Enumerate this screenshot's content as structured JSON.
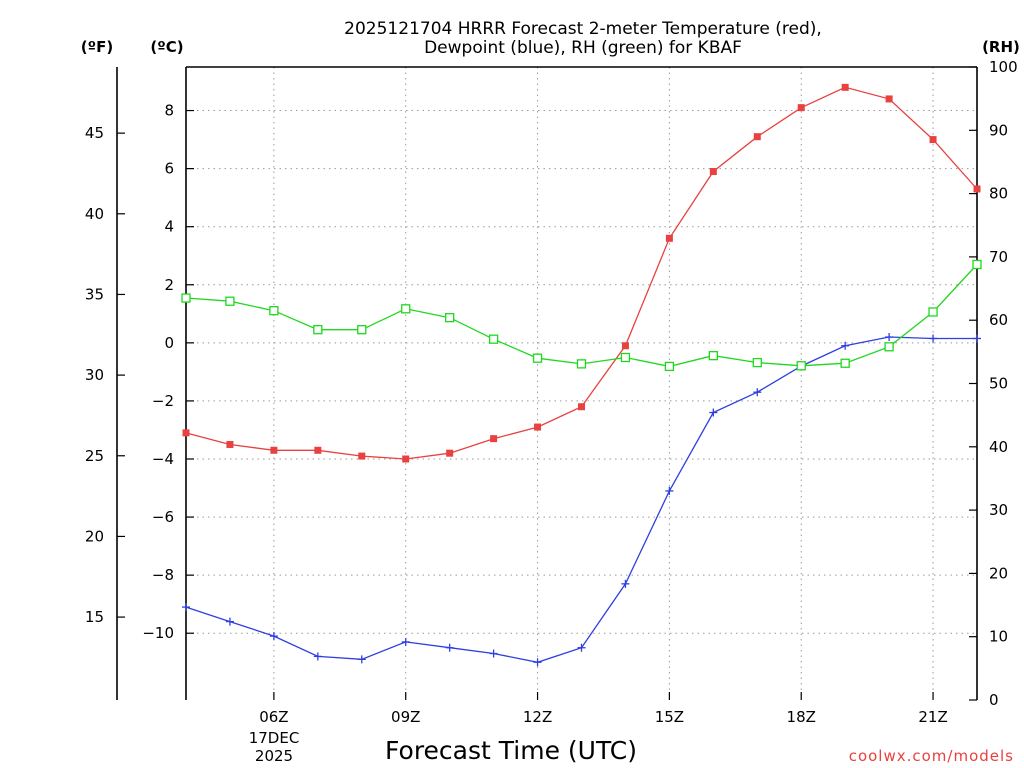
{
  "chart_data": {
    "type": "line",
    "title_line1": "2025121704 HRRR Forecast 2-meter Temperature (red),",
    "title_line2": "Dewpoint (blue), RH (green) for KBAF",
    "xlabel": "Forecast Time (UTC)",
    "credit": "coolwx.com/models",
    "date_label_day": "17DEC",
    "date_label_year": "2025",
    "left_outer_unit": "(ºF)",
    "left_unit": "(ºC)",
    "right_unit": "(RH)",
    "x_hours": [
      4,
      5,
      6,
      7,
      8,
      9,
      10,
      11,
      12,
      13,
      14,
      15,
      16,
      17,
      18,
      19,
      20,
      21,
      22
    ],
    "xlim": [
      4,
      22
    ],
    "x_ticks": [
      {
        "hour": 6,
        "label": "06Z"
      },
      {
        "hour": 9,
        "label": "09Z"
      },
      {
        "hour": 12,
        "label": "12Z"
      },
      {
        "hour": 15,
        "label": "15Z"
      },
      {
        "hour": 18,
        "label": "18Z"
      },
      {
        "hour": 21,
        "label": "21Z"
      }
    ],
    "celsius_axis": {
      "ylim": [
        -12.3,
        9.5
      ],
      "ticks": [
        8,
        6,
        4,
        2,
        0,
        -2,
        -4,
        -6,
        -8,
        -10
      ]
    },
    "fahrenheit_axis": {
      "ticks": [
        45,
        40,
        35,
        30,
        25,
        20,
        15
      ]
    },
    "rh_axis": {
      "ylim": [
        0,
        100
      ],
      "ticks": [
        100,
        90,
        80,
        70,
        60,
        50,
        40,
        30,
        20,
        10,
        0
      ]
    },
    "series": [
      {
        "name": "2-meter Temperature",
        "units": "C",
        "axis": "celsius",
        "color": "#e8413f",
        "marker": "filled-square",
        "values": [
          -3.1,
          -3.5,
          -3.7,
          -3.7,
          -3.9,
          -4.0,
          -3.8,
          -3.3,
          -2.9,
          -2.2,
          -0.1,
          3.6,
          5.9,
          7.1,
          8.1,
          8.8,
          8.4,
          7.0,
          5.3
        ]
      },
      {
        "name": "Dewpoint",
        "units": "C",
        "axis": "celsius",
        "color": "#2e3fe0",
        "marker": "plus",
        "values": [
          -9.1,
          -9.6,
          -10.1,
          -10.8,
          -10.9,
          -10.3,
          -10.5,
          -10.7,
          -11.0,
          -10.5,
          -8.3,
          -5.1,
          -2.4,
          -1.7,
          -0.8,
          -0.1,
          0.2,
          0.15,
          0.15
        ]
      },
      {
        "name": "RH",
        "units": "%",
        "axis": "rh",
        "color": "#1fd81f",
        "marker": "open-square",
        "values": [
          63.5,
          63.0,
          61.5,
          58.5,
          58.5,
          61.8,
          60.4,
          57.0,
          54.0,
          53.1,
          54.1,
          52.7,
          54.4,
          53.3,
          52.8,
          53.2,
          55.8,
          61.3,
          68.8
        ]
      }
    ]
  }
}
